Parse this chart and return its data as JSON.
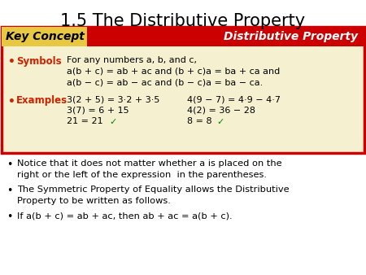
{
  "title": "1.5 The Distributive Property",
  "bg_color": "#ffffff",
  "title_color": "#000000",
  "title_fontsize": 15,
  "key_concept_bg": "#f5f0d0",
  "key_concept_border": "#cc0000",
  "key_concept_header_bg": "#cc0000",
  "key_concept_label_bg": "#e8c840",
  "key_concept_label_text": "Key Concept",
  "key_concept_header_text": "Distributive Property",
  "symbols_label": "Symbols",
  "symbols_label_color": "#cc2200",
  "symbols_line1": "For any numbers a, b, and c,",
  "symbols_line2": "a(b + c) = ab + ac and (b + c)a = ba + ca and",
  "symbols_line3": "a(b − c) = ab − ac and (b − c)a = ba − ca.",
  "examples_label": "Examples",
  "examples_label_color": "#cc2200",
  "examples_col1_line1": "3(2 + 5) = 3·2 + 3·5",
  "examples_col2_line1": "4(9 − 7) = 4·9 − 4·7",
  "examples_col1_line2": "3(7) = 6 + 15",
  "examples_col2_line2": "4(2) = 36 − 28",
  "examples_col1_line3": "21 = 21  ✓",
  "examples_col2_line3": "8 = 8  ✓",
  "checkmark_color": "#008800",
  "bullet1_line1": "Notice that it does not matter whether a is placed on the",
  "bullet1_italic": "a",
  "bullet1_line2": "right or the left of the expression  in the parentheses.",
  "bullet2_line1": "The Symmetric Property of Equality allows the Distributive",
  "bullet2_line2": "Property to be written as follows.",
  "bullet3": "If a(b + c) = ab + ac, then ab + ac = a(b + c).",
  "body_text_color": "#000000"
}
